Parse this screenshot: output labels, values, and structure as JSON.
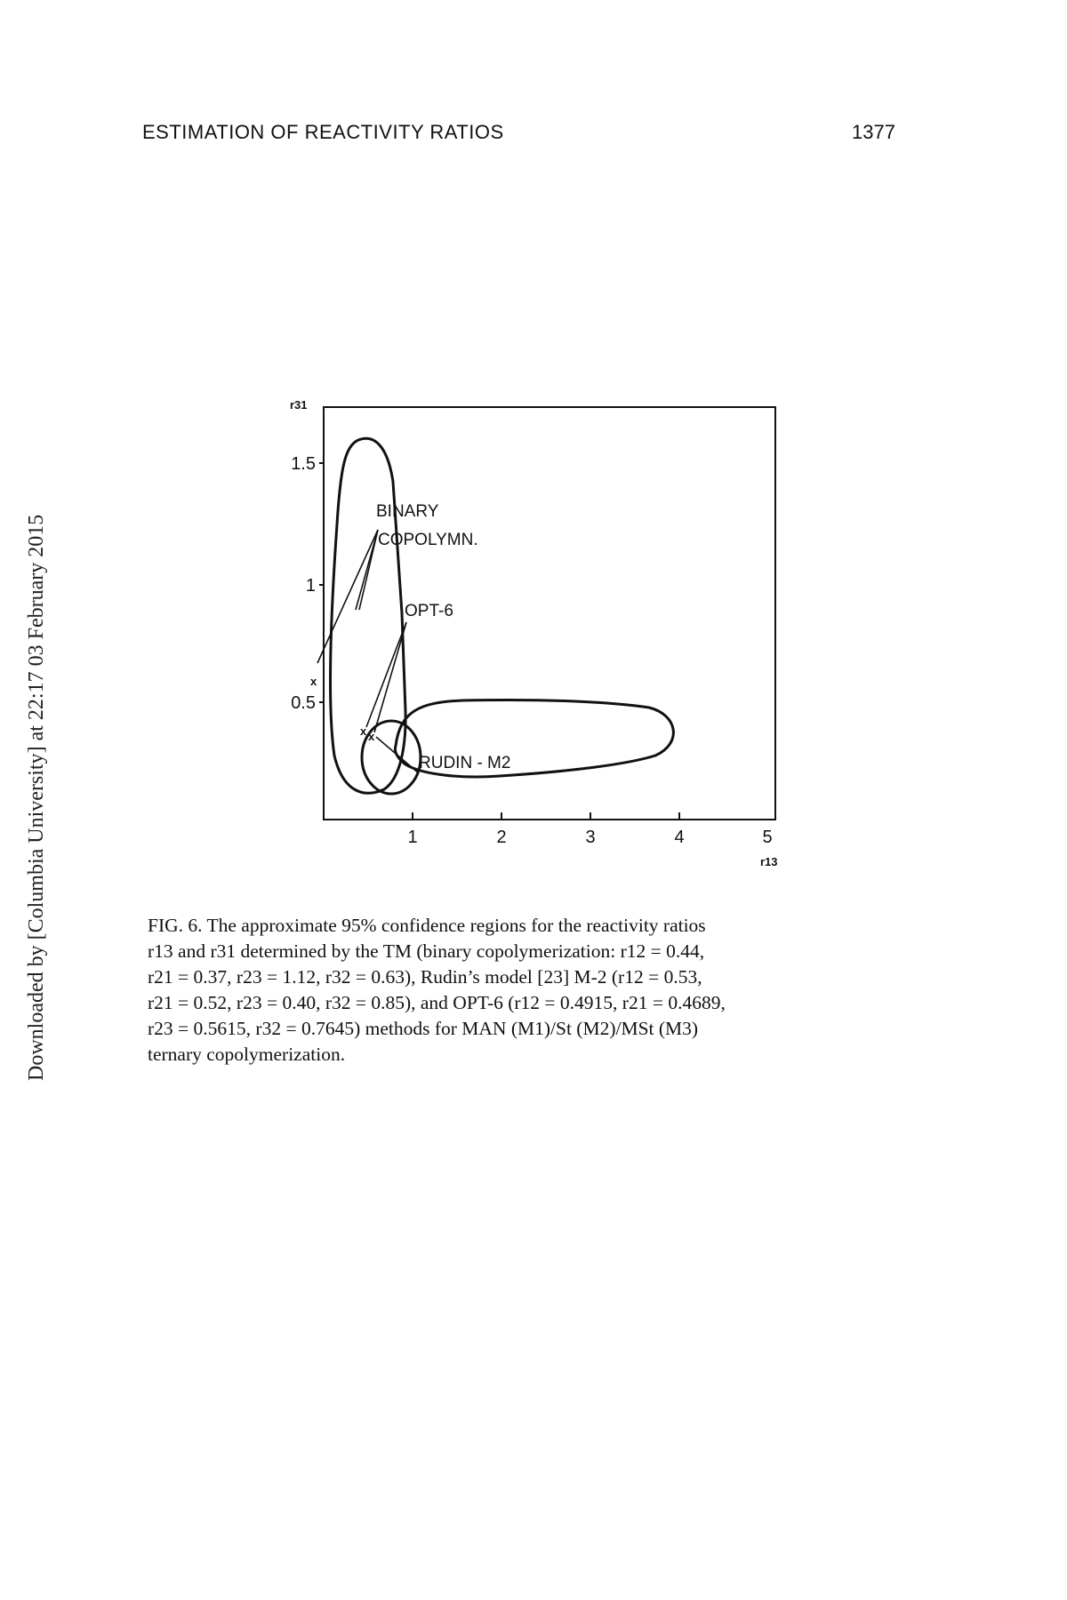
{
  "header": {
    "running_title": "ESTIMATION OF REACTIVITY RATIOS",
    "page_number": "1377"
  },
  "side_note": "Downloaded by [Columbia University] at 22:17 03 February 2015",
  "chart_data": {
    "type": "scatter",
    "xlabel": "r13",
    "ylabel": "r31",
    "xlim": [
      0,
      5
    ],
    "ylim": [
      0,
      1.75
    ],
    "x_ticks": [
      "1",
      "2",
      "3",
      "4",
      "5"
    ],
    "y_ticks": [
      "0.5",
      "1",
      "1.5"
    ],
    "grid": false,
    "series": [
      {
        "name": "BINARY COPOLYMN.",
        "point": [
          0.4,
          0.42
        ]
      },
      {
        "name": "OPT-6",
        "point": [
          1.0,
          0.33
        ]
      },
      {
        "name": "RUDIN - M2",
        "point": [
          1.1,
          0.3
        ]
      }
    ],
    "annotations": [
      "BINARY",
      "COPOLYMN.",
      "OPT-6",
      "RUDIN - M2"
    ]
  },
  "caption": {
    "lines": [
      "FIG. 6. The approximate 95% confidence regions for the reactivity ratios",
      "r13 and r31 determined by the TM (binary copolymerization: r12 = 0.44,",
      "r21 = 0.37, r23 = 1.12, r32 = 0.63), Rudin’s model [23] M-2 (r12 = 0.53,",
      "r21 = 0.52, r23 = 0.40, r32 = 0.85), and OPT-6 (r12 = 0.4915, r21 = 0.4689,",
      "r23 = 0.5615, r32 = 0.7645) methods for MAN (M1)/St (M2)/MSt (M3)",
      "ternary copolymerization."
    ]
  }
}
